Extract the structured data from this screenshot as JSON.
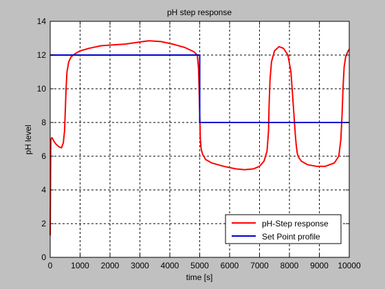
{
  "window": {
    "background": "#c0c0c0"
  },
  "chart_data": {
    "type": "line",
    "title": "pH step response",
    "xlabel": "time [s]",
    "ylabel": "pH level",
    "xlim": [
      0,
      10000
    ],
    "ylim": [
      0,
      14
    ],
    "x_ticks": [
      0,
      1000,
      2000,
      3000,
      4000,
      5000,
      6000,
      7000,
      8000,
      9000,
      10000
    ],
    "y_ticks": [
      0,
      2,
      4,
      6,
      8,
      10,
      12,
      14
    ],
    "grid": true,
    "legend_position": "bottom-right",
    "series": [
      {
        "name": "pH-Step response",
        "color": "#ff0000",
        "x": [
          0,
          20,
          60,
          120,
          200,
          300,
          380,
          440,
          480,
          500,
          530,
          560,
          620,
          700,
          850,
          1000,
          1300,
          1700,
          2100,
          2500,
          2900,
          3300,
          3700,
          4100,
          4500,
          4800,
          4920,
          4960,
          4980,
          5000,
          5020,
          5050,
          5100,
          5200,
          5400,
          5800,
          6200,
          6500,
          6800,
          7000,
          7150,
          7250,
          7300,
          7320,
          7350,
          7400,
          7500,
          7650,
          7800,
          7950,
          8050,
          8150,
          8200,
          8230,
          8260,
          8300,
          8400,
          8600,
          8900,
          9200,
          9500,
          9650,
          9720,
          9760,
          9790,
          9830,
          9880,
          9950,
          10000
        ],
        "y": [
          1.3,
          7.0,
          7.1,
          6.9,
          6.7,
          6.55,
          6.5,
          6.8,
          7.5,
          8.5,
          10.0,
          11.0,
          11.6,
          11.9,
          12.1,
          12.25,
          12.4,
          12.55,
          12.6,
          12.65,
          12.75,
          12.85,
          12.8,
          12.65,
          12.45,
          12.2,
          12.0,
          11.2,
          10.0,
          8.5,
          7.0,
          6.4,
          6.1,
          5.8,
          5.6,
          5.4,
          5.25,
          5.2,
          5.25,
          5.4,
          5.7,
          6.3,
          7.5,
          9.0,
          10.5,
          11.6,
          12.25,
          12.5,
          12.4,
          12.0,
          11.0,
          8.5,
          7.2,
          6.6,
          6.2,
          5.95,
          5.7,
          5.5,
          5.4,
          5.4,
          5.6,
          6.0,
          7.0,
          8.5,
          10.0,
          11.3,
          11.9,
          12.2,
          12.35
        ]
      },
      {
        "name": "Set Point profile",
        "color": "#0000cc",
        "x": [
          0,
          5000,
          5000,
          10000
        ],
        "y": [
          12,
          12,
          8,
          8
        ]
      }
    ]
  }
}
